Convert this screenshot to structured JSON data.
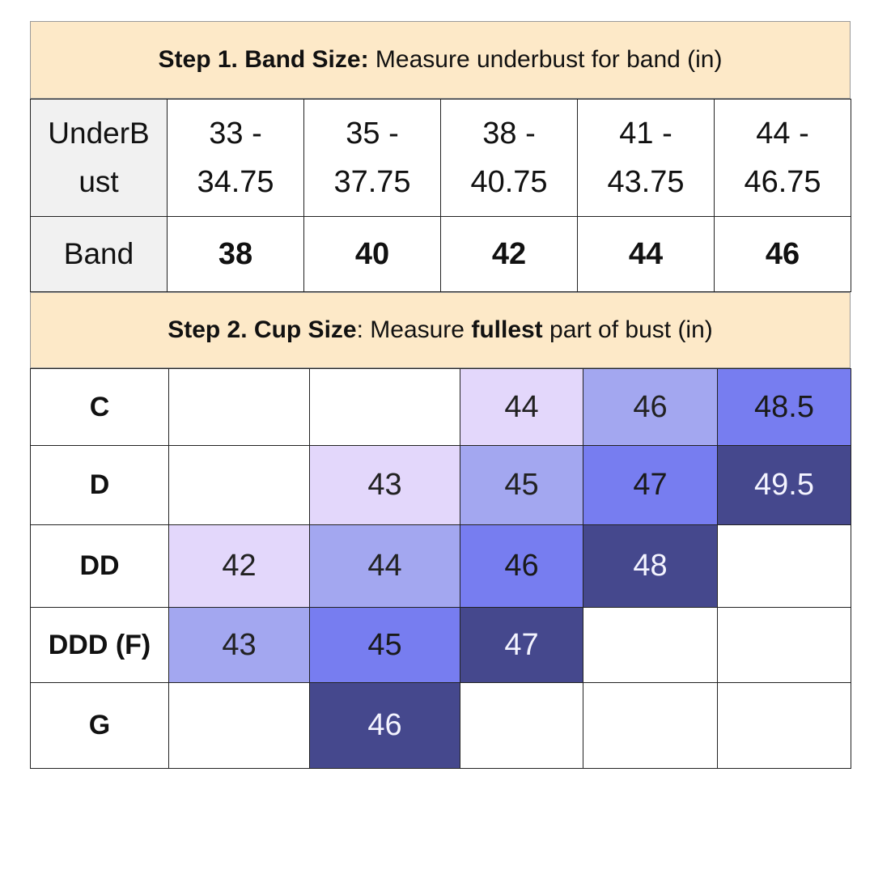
{
  "step1": {
    "bold": "Step 1. Band Size:",
    "rest": " Measure underbust for band (in)"
  },
  "band_table": {
    "row1_label": "UnderB ust",
    "underbust": [
      "33 - 34.75",
      "35 - 37.75",
      "38 - 40.75",
      "41 - 43.75",
      "44 - 46.75"
    ],
    "row2_label": "Band",
    "bands": [
      "38",
      "40",
      "42",
      "44",
      "46"
    ]
  },
  "step2": {
    "bold": "Step 2. Cup Size",
    "mid": ": Measure ",
    "emph": "fullest",
    "rest": " part of bust (in)"
  },
  "cup_table": {
    "rows": [
      {
        "label": "C",
        "cells": [
          "",
          "",
          "44",
          "46",
          "48.5"
        ]
      },
      {
        "label": "D",
        "cells": [
          "",
          "43",
          "45",
          "47",
          "49.5"
        ]
      },
      {
        "label": "DD",
        "cells": [
          "42",
          "44",
          "46",
          "48",
          ""
        ]
      },
      {
        "label": "DDD (F)",
        "cells": [
          "43",
          "45",
          "47",
          "",
          ""
        ]
      },
      {
        "label": "G",
        "cells": [
          "",
          "46",
          "",
          "",
          ""
        ]
      }
    ]
  },
  "colors": {
    "header_bg": "#fde9c8",
    "label_bg": "#f1f1f1",
    "shade_1": "#e3d7fb",
    "shade_2": "#a3a7f0",
    "shade_3": "#777df0",
    "shade_4": "#45488d"
  }
}
